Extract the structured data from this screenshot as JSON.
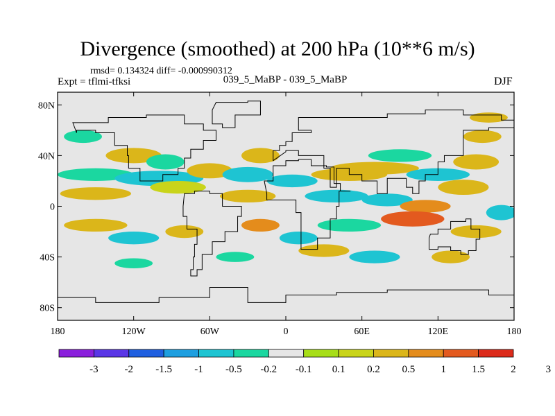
{
  "title": "Divergence (smoothed) at 200 hPa (10**6 m/s)",
  "stats_line": "rmsd= 0.134324 diff= -0.000990312",
  "expt_line": "Expt = tflmi-tfksi",
  "cases_line": "039_5_MaBP - 039_5_MaBP",
  "season": "DJF",
  "colors": {
    "land_fill": "#e6e6e6",
    "coast": "#000000",
    "levels": [
      "#8a1fdc",
      "#5a36e6",
      "#1f5fe0",
      "#1e9fe0",
      "#1ec4d2",
      "#1bd7a0",
      "#e6e6e6",
      "#a7de18",
      "#c9d41a",
      "#dbb61a",
      "#e48c1c",
      "#e35a1f",
      "#dc2b1b"
    ]
  },
  "chart_data": {
    "type": "heatmap",
    "title": "Divergence (smoothed) at 200 hPa (10**6 m/s)",
    "x_range": [
      -180,
      180
    ],
    "y_range": [
      -90,
      90
    ],
    "x_ticks": [
      {
        "value": -180,
        "label": "180"
      },
      {
        "value": -120,
        "label": "120W"
      },
      {
        "value": -60,
        "label": "60W"
      },
      {
        "value": 0,
        "label": "0"
      },
      {
        "value": 60,
        "label": "60E"
      },
      {
        "value": 120,
        "label": "120E"
      },
      {
        "value": 180,
        "label": "180"
      }
    ],
    "y_ticks": [
      {
        "value": 80,
        "label": "80N"
      },
      {
        "value": 40,
        "label": "40N"
      },
      {
        "value": 0,
        "label": "0"
      },
      {
        "value": -40,
        "label": "40S"
      },
      {
        "value": -80,
        "label": "80S"
      }
    ],
    "colorbar_levels": [
      "-3",
      "-2",
      "-1.5",
      "-1",
      "-0.5",
      "-0.2",
      "-0.1",
      "0.1",
      "0.2",
      "0.5",
      "1",
      "1.5",
      "2",
      "3"
    ],
    "features": [
      {
        "lon": -160,
        "lat": 55,
        "rlon": 15,
        "rlat": 5,
        "level": 5
      },
      {
        "lon": -120,
        "lat": 40,
        "rlon": 22,
        "rlat": 6,
        "level": 9
      },
      {
        "lon": -95,
        "lat": 35,
        "rlon": 15,
        "rlat": 6,
        "level": 5
      },
      {
        "lon": -150,
        "lat": 25,
        "rlon": 30,
        "rlat": 5,
        "level": 5
      },
      {
        "lon": -100,
        "lat": 22,
        "rlon": 35,
        "rlat": 6,
        "level": 4
      },
      {
        "lon": -150,
        "lat": 10,
        "rlon": 28,
        "rlat": 5,
        "level": 9
      },
      {
        "lon": -85,
        "lat": 15,
        "rlon": 22,
        "rlat": 5,
        "level": 8
      },
      {
        "lon": -60,
        "lat": 28,
        "rlon": 18,
        "rlat": 6,
        "level": 9
      },
      {
        "lon": -30,
        "lat": 25,
        "rlon": 20,
        "rlat": 6,
        "level": 4
      },
      {
        "lon": -20,
        "lat": 40,
        "rlon": 15,
        "rlat": 6,
        "level": 9
      },
      {
        "lon": -30,
        "lat": 8,
        "rlon": 22,
        "rlat": 5,
        "level": 9
      },
      {
        "lon": 5,
        "lat": 20,
        "rlon": 20,
        "rlat": 5,
        "level": 4
      },
      {
        "lon": 50,
        "lat": 25,
        "rlon": 30,
        "rlat": 5,
        "level": 9
      },
      {
        "lon": 70,
        "lat": 30,
        "rlon": 35,
        "rlat": 5,
        "level": 9
      },
      {
        "lon": 90,
        "lat": 40,
        "rlon": 25,
        "rlat": 5,
        "level": 5
      },
      {
        "lon": 40,
        "lat": 8,
        "rlon": 25,
        "rlat": 5,
        "level": 4
      },
      {
        "lon": 80,
        "lat": 5,
        "rlon": 20,
        "rlat": 5,
        "level": 4
      },
      {
        "lon": 110,
        "lat": 0,
        "rlon": 20,
        "rlat": 5,
        "level": 10
      },
      {
        "lon": 140,
        "lat": 15,
        "rlon": 20,
        "rlat": 6,
        "level": 9
      },
      {
        "lon": 150,
        "lat": 35,
        "rlon": 18,
        "rlat": 6,
        "level": 9
      },
      {
        "lon": 155,
        "lat": 55,
        "rlon": 15,
        "rlat": 5,
        "level": 9
      },
      {
        "lon": 120,
        "lat": 25,
        "rlon": 25,
        "rlat": 5,
        "level": 4
      },
      {
        "lon": -150,
        "lat": -15,
        "rlon": 25,
        "rlat": 5,
        "level": 9
      },
      {
        "lon": -120,
        "lat": -25,
        "rlon": 20,
        "rlat": 5,
        "level": 4
      },
      {
        "lon": -80,
        "lat": -20,
        "rlon": 15,
        "rlat": 5,
        "level": 9
      },
      {
        "lon": -20,
        "lat": -15,
        "rlon": 15,
        "rlat": 5,
        "level": 10
      },
      {
        "lon": 10,
        "lat": -25,
        "rlon": 15,
        "rlat": 5,
        "level": 4
      },
      {
        "lon": 50,
        "lat": -15,
        "rlon": 25,
        "rlat": 5,
        "level": 5
      },
      {
        "lon": 100,
        "lat": -10,
        "rlon": 25,
        "rlat": 6,
        "level": 11
      },
      {
        "lon": 150,
        "lat": -20,
        "rlon": 20,
        "rlat": 5,
        "level": 9
      },
      {
        "lon": 30,
        "lat": -35,
        "rlon": 20,
        "rlat": 5,
        "level": 9
      },
      {
        "lon": 70,
        "lat": -40,
        "rlon": 20,
        "rlat": 5,
        "level": 4
      },
      {
        "lon": 130,
        "lat": -40,
        "rlon": 15,
        "rlat": 5,
        "level": 9
      },
      {
        "lon": -120,
        "lat": -45,
        "rlon": 15,
        "rlat": 4,
        "level": 5
      },
      {
        "lon": -40,
        "lat": -40,
        "rlon": 15,
        "rlat": 4,
        "level": 5
      },
      {
        "lon": 170,
        "lat": -5,
        "rlon": 12,
        "rlat": 6,
        "level": 4
      },
      {
        "lon": 160,
        "lat": 70,
        "rlon": 15,
        "rlat": 4,
        "level": 9
      }
    ],
    "landmasses": [
      {
        "name": "north-america",
        "points": [
          [
            -168,
            66
          ],
          [
            -140,
            70
          ],
          [
            -110,
            72
          ],
          [
            -90,
            72
          ],
          [
            -80,
            65
          ],
          [
            -65,
            60
          ],
          [
            -55,
            52
          ],
          [
            -65,
            45
          ],
          [
            -75,
            38
          ],
          [
            -80,
            30
          ],
          [
            -85,
            25
          ],
          [
            -97,
            20
          ],
          [
            -105,
            20
          ],
          [
            -115,
            30
          ],
          [
            -124,
            40
          ],
          [
            -125,
            48
          ],
          [
            -135,
            58
          ],
          [
            -150,
            60
          ],
          [
            -165,
            58
          ]
        ]
      },
      {
        "name": "south-america",
        "points": [
          [
            -80,
            10
          ],
          [
            -72,
            12
          ],
          [
            -60,
            10
          ],
          [
            -50,
            0
          ],
          [
            -35,
            -8
          ],
          [
            -38,
            -20
          ],
          [
            -48,
            -28
          ],
          [
            -58,
            -38
          ],
          [
            -66,
            -50
          ],
          [
            -70,
            -55
          ],
          [
            -75,
            -50
          ],
          [
            -73,
            -40
          ],
          [
            -72,
            -30
          ],
          [
            -70,
            -18
          ],
          [
            -78,
            -8
          ],
          [
            -81,
            0
          ]
        ]
      },
      {
        "name": "africa",
        "points": [
          [
            -17,
            20
          ],
          [
            -10,
            32
          ],
          [
            0,
            36
          ],
          [
            10,
            37
          ],
          [
            20,
            32
          ],
          [
            32,
            31
          ],
          [
            38,
            18
          ],
          [
            43,
            12
          ],
          [
            51,
            12
          ],
          [
            42,
            0
          ],
          [
            40,
            -10
          ],
          [
            35,
            -25
          ],
          [
            25,
            -34
          ],
          [
            18,
            -34
          ],
          [
            12,
            -18
          ],
          [
            12,
            -5
          ],
          [
            8,
            5
          ],
          [
            -5,
            5
          ],
          [
            -15,
            10
          ]
        ]
      },
      {
        "name": "eurasia",
        "points": [
          [
            -10,
            36
          ],
          [
            -10,
            44
          ],
          [
            -5,
            48
          ],
          [
            0,
            51
          ],
          [
            5,
            58
          ],
          [
            20,
            60
          ],
          [
            10,
            70
          ],
          [
            30,
            70
          ],
          [
            60,
            70
          ],
          [
            80,
            73
          ],
          [
            110,
            76
          ],
          [
            140,
            72
          ],
          [
            170,
            68
          ],
          [
            180,
            66
          ],
          [
            180,
            62
          ],
          [
            160,
            60
          ],
          [
            140,
            55
          ],
          [
            140,
            40
          ],
          [
            125,
            35
          ],
          [
            120,
            25
          ],
          [
            110,
            20
          ],
          [
            105,
            10
          ],
          [
            100,
            15
          ],
          [
            95,
            22
          ],
          [
            90,
            22
          ],
          [
            80,
            10
          ],
          [
            72,
            20
          ],
          [
            60,
            25
          ],
          [
            50,
            30
          ],
          [
            40,
            15
          ],
          [
            35,
            30
          ],
          [
            30,
            40
          ],
          [
            20,
            40
          ],
          [
            10,
            44
          ],
          [
            0,
            43
          ]
        ]
      },
      {
        "name": "australia",
        "points": [
          [
            114,
            -22
          ],
          [
            120,
            -18
          ],
          [
            130,
            -12
          ],
          [
            137,
            -12
          ],
          [
            142,
            -10
          ],
          [
            146,
            -18
          ],
          [
            153,
            -26
          ],
          [
            150,
            -35
          ],
          [
            144,
            -38
          ],
          [
            138,
            -35
          ],
          [
            130,
            -32
          ],
          [
            120,
            -34
          ],
          [
            115,
            -34
          ],
          [
            113,
            -25
          ]
        ]
      },
      {
        "name": "antarctica",
        "points": [
          [
            -180,
            -72
          ],
          [
            -150,
            -76
          ],
          [
            -100,
            -72
          ],
          [
            -60,
            -64
          ],
          [
            -30,
            -76
          ],
          [
            0,
            -70
          ],
          [
            40,
            -68
          ],
          [
            80,
            -66
          ],
          [
            120,
            -66
          ],
          [
            160,
            -70
          ],
          [
            180,
            -72
          ],
          [
            180,
            -90
          ],
          [
            -180,
            -90
          ]
        ]
      },
      {
        "name": "greenland",
        "points": [
          [
            -55,
            82
          ],
          [
            -30,
            83
          ],
          [
            -20,
            80
          ],
          [
            -20,
            72
          ],
          [
            -40,
            62
          ],
          [
            -50,
            65
          ],
          [
            -58,
            76
          ]
        ]
      }
    ]
  }
}
